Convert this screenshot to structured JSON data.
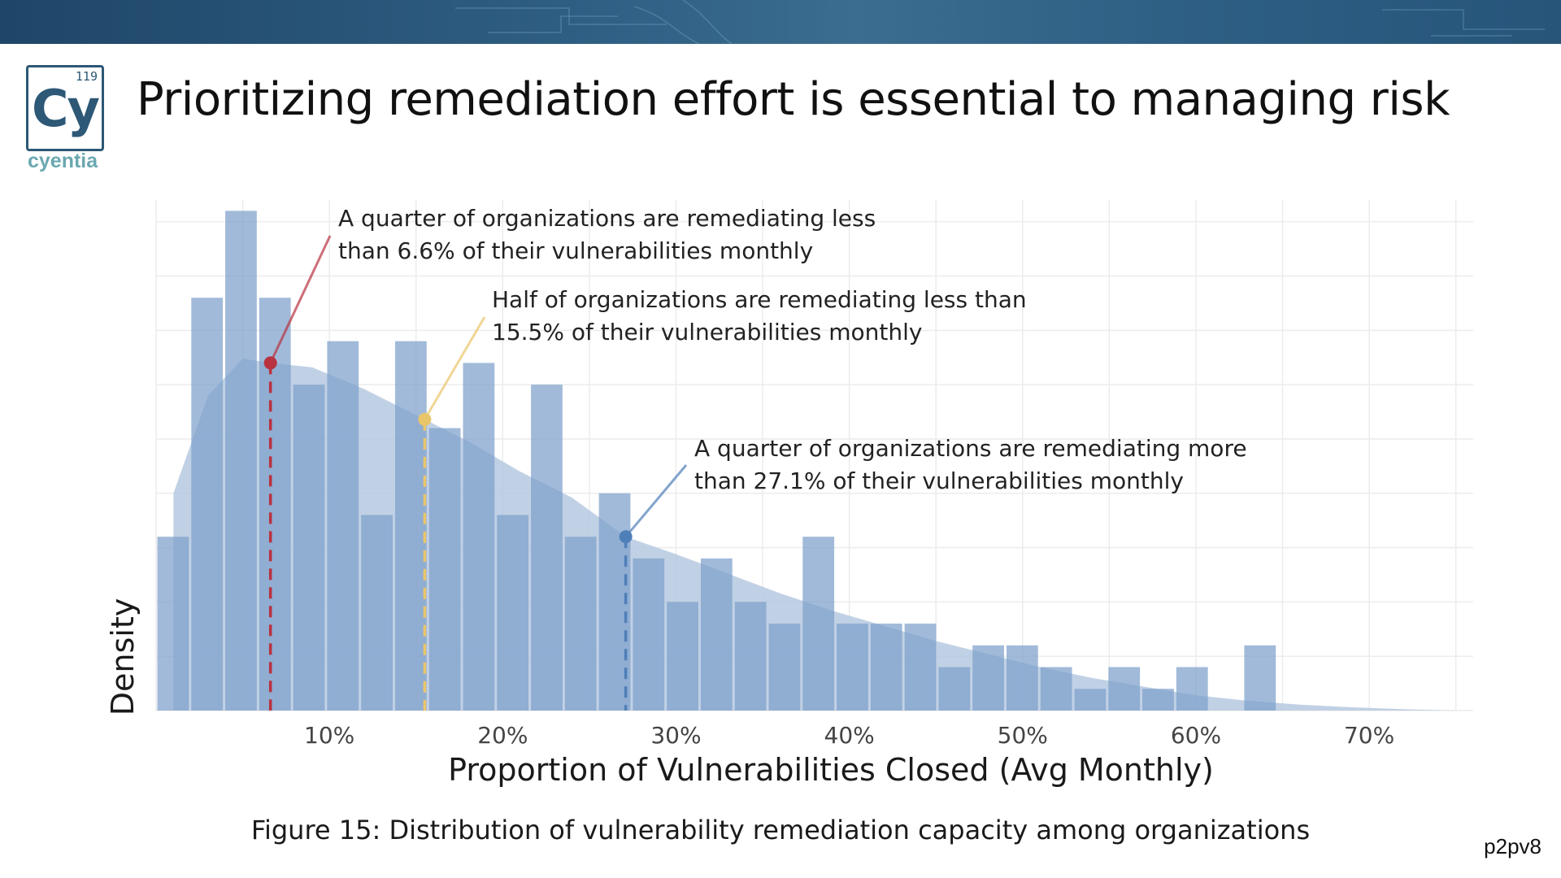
{
  "slide": {
    "title": "Prioritizing remediation effort is essential to managing risk",
    "caption": "Figure 15: Distribution of vulnerability remediation capacity among organizations",
    "page_code": "p2pv8"
  },
  "logo": {
    "number": "119",
    "symbol": "Cy",
    "wordmark": "cyentia"
  },
  "colors": {
    "banner": "#2e5d82",
    "bar": "#7d9fcb",
    "density": "#b6c9e1",
    "q1_marker": "#b8323f",
    "median_marker": "#e9c56a",
    "q3_marker": "#4f7fb8"
  },
  "chart_data": {
    "type": "bar",
    "subtype": "histogram with density curve",
    "xlabel": "Proportion of Vulnerabilities Closed (Avg Monthly)",
    "ylabel": "Density",
    "xlim": [
      0,
      76
    ],
    "ylim": [
      0,
      23.5
    ],
    "x_ticks": [
      {
        "value": 10,
        "label": "10%"
      },
      {
        "value": 20,
        "label": "20%"
      },
      {
        "value": 30,
        "label": "30%"
      },
      {
        "value": 40,
        "label": "40%"
      },
      {
        "value": 50,
        "label": "50%"
      },
      {
        "value": 60,
        "label": "60%"
      },
      {
        "value": 70,
        "label": "70%"
      }
    ],
    "grid": true,
    "bin_width": 1.96,
    "bins": [
      {
        "x0": 0.0,
        "count": 8
      },
      {
        "x0": 1.96,
        "count": 19
      },
      {
        "x0": 3.92,
        "count": 23
      },
      {
        "x0": 5.88,
        "count": 19
      },
      {
        "x0": 7.84,
        "count": 15
      },
      {
        "x0": 9.8,
        "count": 17
      },
      {
        "x0": 11.76,
        "count": 9
      },
      {
        "x0": 13.72,
        "count": 17
      },
      {
        "x0": 15.68,
        "count": 13
      },
      {
        "x0": 17.64,
        "count": 16
      },
      {
        "x0": 19.6,
        "count": 9
      },
      {
        "x0": 21.56,
        "count": 15
      },
      {
        "x0": 23.52,
        "count": 8
      },
      {
        "x0": 25.48,
        "count": 10
      },
      {
        "x0": 27.44,
        "count": 7
      },
      {
        "x0": 29.4,
        "count": 5
      },
      {
        "x0": 31.36,
        "count": 7
      },
      {
        "x0": 33.32,
        "count": 5
      },
      {
        "x0": 35.28,
        "count": 4
      },
      {
        "x0": 37.24,
        "count": 8
      },
      {
        "x0": 39.2,
        "count": 4
      },
      {
        "x0": 41.16,
        "count": 4
      },
      {
        "x0": 43.12,
        "count": 4
      },
      {
        "x0": 45.08,
        "count": 2
      },
      {
        "x0": 47.04,
        "count": 3
      },
      {
        "x0": 49.0,
        "count": 3
      },
      {
        "x0": 50.96,
        "count": 2
      },
      {
        "x0": 52.92,
        "count": 1
      },
      {
        "x0": 54.88,
        "count": 2
      },
      {
        "x0": 56.84,
        "count": 1
      },
      {
        "x0": 58.8,
        "count": 2
      },
      {
        "x0": 60.76,
        "count": 0
      },
      {
        "x0": 62.72,
        "count": 3
      }
    ],
    "density": [
      [
        1.0,
        10.0
      ],
      [
        3.0,
        14.5
      ],
      [
        5.0,
        16.2
      ],
      [
        6.6,
        16.0
      ],
      [
        9.0,
        15.8
      ],
      [
        12.0,
        14.8
      ],
      [
        15.5,
        13.4
      ],
      [
        18.0,
        12.4
      ],
      [
        21.0,
        11.0
      ],
      [
        24.0,
        9.8
      ],
      [
        27.1,
        8.0
      ],
      [
        30.0,
        7.2
      ],
      [
        33.0,
        6.3
      ],
      [
        36.0,
        5.4
      ],
      [
        39.0,
        4.6
      ],
      [
        42.0,
        3.9
      ],
      [
        45.0,
        3.2
      ],
      [
        48.0,
        2.6
      ],
      [
        51.0,
        2.0
      ],
      [
        54.0,
        1.5
      ],
      [
        57.0,
        1.1
      ],
      [
        60.0,
        0.7
      ],
      [
        63.0,
        0.45
      ],
      [
        66.0,
        0.27
      ],
      [
        69.0,
        0.15
      ],
      [
        72.0,
        0.06
      ],
      [
        75.0,
        0.0
      ]
    ],
    "quantiles": [
      {
        "name": "q1",
        "value": 6.6,
        "color": "#b8323f",
        "text": [
          "A quarter of organizations are remediating less",
          "than 6.6% of their vulnerabilities monthly"
        ]
      },
      {
        "name": "median",
        "value": 15.5,
        "color": "#e9c56a",
        "text": [
          "Half of organizations are remediating less than",
          "15.5% of their vulnerabilities monthly"
        ]
      },
      {
        "name": "q3",
        "value": 27.1,
        "color": "#4f7fb8",
        "text": [
          "A quarter of organizations are remediating more",
          "than 27.1% of their vulnerabilities monthly"
        ]
      }
    ]
  }
}
